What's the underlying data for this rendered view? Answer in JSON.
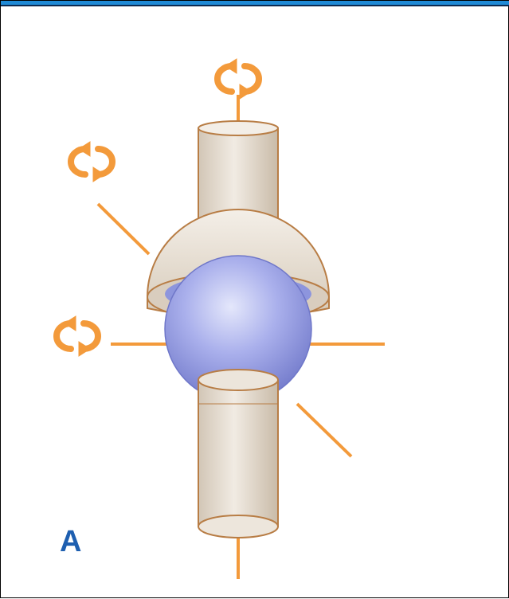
{
  "figure": {
    "panel_label": "A",
    "colors": {
      "border_bar": "#1f8ad6",
      "axis": "#f39a3b",
      "shaft_fill": "#e6ddd1",
      "shaft_stroke": "#b87d45",
      "ball": "#9fa6e8",
      "label": "#1e5fb0"
    },
    "icons": {
      "rotation_arrows": "rotation-arrows-icon",
      "ball_joint": "ball-and-socket-joint"
    }
  }
}
